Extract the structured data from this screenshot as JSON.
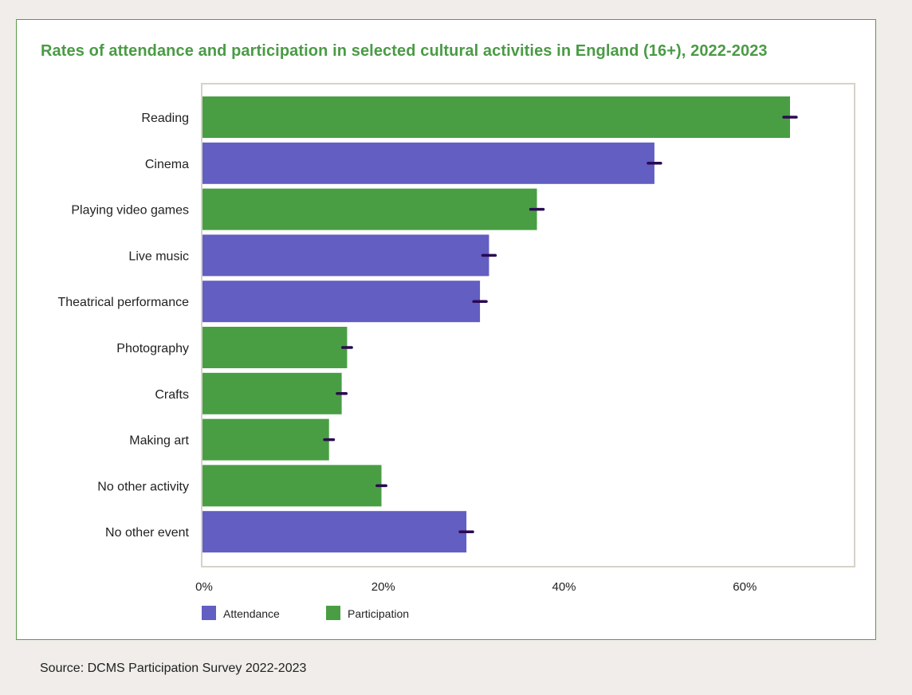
{
  "source": "Source: DCMS Participation Survey 2022-2023",
  "colors": {
    "attendance": "#625ec2",
    "participation": "#499e44",
    "error_bar": "#2a0a52",
    "title": "#4a9b45",
    "frame": "#d7d2c9"
  },
  "chart_data": {
    "type": "bar",
    "orientation": "horizontal",
    "title": "Rates of attendance and participation in selected cultural activities in England (16+), 2022-2023",
    "xlim": [
      0,
      72
    ],
    "ticks": [
      0,
      20,
      40,
      60
    ],
    "tick_labels": [
      "0%",
      "20%",
      "40%",
      "60%"
    ],
    "legend_position": "bottom-left",
    "legend": [
      {
        "name": "Attendance",
        "key": "attendance"
      },
      {
        "name": "Participation",
        "key": "participation"
      }
    ],
    "categories": [
      "Reading",
      "Cinema",
      "Playing video games",
      "Live music",
      "Theatrical performance",
      "Photography",
      "Crafts",
      "Making art",
      "No other activity",
      "No other event"
    ],
    "values": [
      65,
      50,
      37,
      31.7,
      30.7,
      16,
      15.4,
      14,
      19.8,
      29.2
    ],
    "groups": [
      "participation",
      "attendance",
      "participation",
      "attendance",
      "attendance",
      "participation",
      "participation",
      "participation",
      "participation",
      "attendance"
    ],
    "error_low": [
      64.3,
      49.3,
      36.3,
      31,
      30,
      15.5,
      14.9,
      13.5,
      19.3,
      28.5
    ],
    "error_high": [
      65.7,
      50.7,
      37.7,
      32.4,
      31.4,
      16.5,
      15.9,
      14.5,
      20.3,
      29.9
    ]
  }
}
